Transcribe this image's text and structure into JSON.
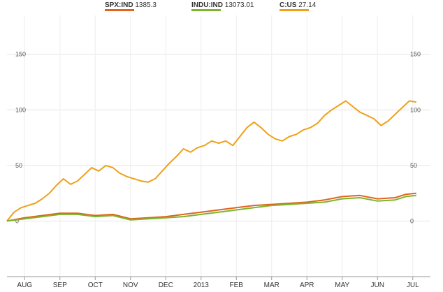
{
  "legend": [
    {
      "ticker": "SPX:IND",
      "value": "1385.3",
      "color": "#e0641e"
    },
    {
      "ticker": "INDU:IND",
      "value": "13073.01",
      "color": "#7fb52a"
    },
    {
      "ticker": "C:US",
      "value": "27.14",
      "color": "#f0a018"
    }
  ],
  "chart_data": {
    "type": "line",
    "x_labels": [
      "AUG",
      "SEP",
      "OCT",
      "NOV",
      "DEC",
      "2013",
      "FEB",
      "MAR",
      "APR",
      "MAY",
      "JUN",
      "JUL"
    ],
    "x_range": [
      0,
      12
    ],
    "yticks": [
      0,
      50,
      100,
      150
    ],
    "ylim": [
      -50,
      185
    ],
    "grid": true,
    "legend_position": "top",
    "series": [
      {
        "name": "C:US",
        "color": "#f0a018",
        "points": [
          [
            0,
            0
          ],
          [
            0.2,
            8
          ],
          [
            0.4,
            12
          ],
          [
            0.6,
            14
          ],
          [
            0.8,
            16
          ],
          [
            1,
            20
          ],
          [
            1.2,
            25
          ],
          [
            1.4,
            32
          ],
          [
            1.6,
            38
          ],
          [
            1.8,
            33
          ],
          [
            2.0,
            36
          ],
          [
            2.2,
            42
          ],
          [
            2.4,
            48
          ],
          [
            2.6,
            45
          ],
          [
            2.8,
            50
          ],
          [
            3.0,
            48
          ],
          [
            3.2,
            43
          ],
          [
            3.4,
            40
          ],
          [
            3.6,
            38
          ],
          [
            3.8,
            36
          ],
          [
            4.0,
            35
          ],
          [
            4.2,
            38
          ],
          [
            4.4,
            45
          ],
          [
            4.6,
            52
          ],
          [
            4.8,
            58
          ],
          [
            5.0,
            65
          ],
          [
            5.2,
            62
          ],
          [
            5.4,
            66
          ],
          [
            5.6,
            68
          ],
          [
            5.8,
            72
          ],
          [
            6.0,
            70
          ],
          [
            6.2,
            72
          ],
          [
            6.4,
            68
          ],
          [
            6.6,
            76
          ],
          [
            6.8,
            84
          ],
          [
            7.0,
            89
          ],
          [
            7.2,
            84
          ],
          [
            7.4,
            78
          ],
          [
            7.6,
            74
          ],
          [
            7.8,
            72
          ],
          [
            8.0,
            76
          ],
          [
            8.2,
            78
          ],
          [
            8.4,
            82
          ],
          [
            8.6,
            84
          ],
          [
            8.8,
            88
          ],
          [
            9.0,
            95
          ],
          [
            9.2,
            100
          ],
          [
            9.4,
            104
          ],
          [
            9.6,
            108
          ],
          [
            9.8,
            103
          ],
          [
            10.0,
            98
          ],
          [
            10.2,
            95
          ],
          [
            10.4,
            92
          ],
          [
            10.6,
            86
          ],
          [
            10.8,
            90
          ],
          [
            11.0,
            96
          ],
          [
            11.2,
            102
          ],
          [
            11.4,
            108
          ],
          [
            11.6,
            107
          ]
        ]
      },
      {
        "name": "SPX:IND",
        "color": "#e0641e",
        "points": [
          [
            0,
            0
          ],
          [
            0.5,
            3
          ],
          [
            1,
            5
          ],
          [
            1.5,
            7
          ],
          [
            2,
            7
          ],
          [
            2.5,
            5
          ],
          [
            3,
            6
          ],
          [
            3.5,
            2
          ],
          [
            4,
            3
          ],
          [
            4.5,
            4
          ],
          [
            5,
            6
          ],
          [
            5.5,
            8
          ],
          [
            6,
            10
          ],
          [
            6.5,
            12
          ],
          [
            7,
            14
          ],
          [
            7.5,
            15
          ],
          [
            8,
            16
          ],
          [
            8.5,
            17
          ],
          [
            9,
            19
          ],
          [
            9.5,
            22
          ],
          [
            10,
            23
          ],
          [
            10.5,
            20
          ],
          [
            11,
            21
          ],
          [
            11.3,
            24
          ],
          [
            11.6,
            25
          ]
        ]
      },
      {
        "name": "INDU:IND",
        "color": "#7fb52a",
        "points": [
          [
            0,
            0
          ],
          [
            0.5,
            2
          ],
          [
            1,
            4
          ],
          [
            1.5,
            6
          ],
          [
            2,
            6
          ],
          [
            2.5,
            4
          ],
          [
            3,
            5
          ],
          [
            3.5,
            1
          ],
          [
            4,
            2
          ],
          [
            4.5,
            3
          ],
          [
            5,
            4
          ],
          [
            5.5,
            6
          ],
          [
            6,
            8
          ],
          [
            6.5,
            10
          ],
          [
            7,
            12
          ],
          [
            7.5,
            14
          ],
          [
            8,
            15
          ],
          [
            8.5,
            16
          ],
          [
            9,
            17
          ],
          [
            9.5,
            20
          ],
          [
            10,
            21
          ],
          [
            10.5,
            18
          ],
          [
            11,
            19
          ],
          [
            11.3,
            22
          ],
          [
            11.6,
            23
          ]
        ]
      }
    ]
  }
}
